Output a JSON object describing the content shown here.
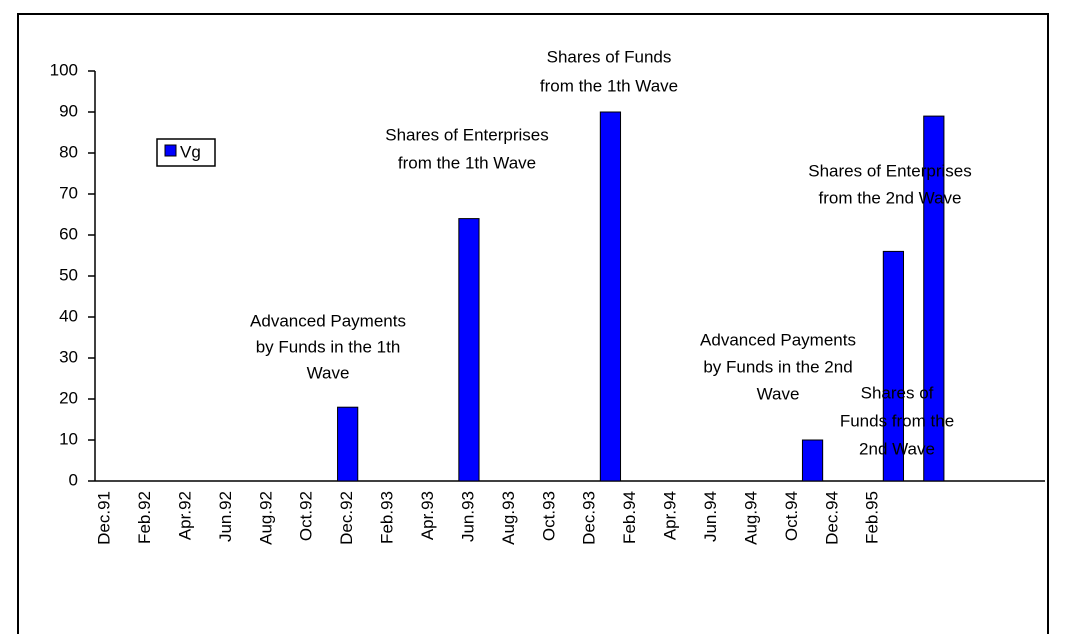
{
  "chart_data": {
    "type": "bar",
    "categories": [
      "Dec.91",
      null,
      "Feb.92",
      null,
      "Apr.92",
      null,
      "Jun.92",
      null,
      "Aug.92",
      null,
      "Oct.92",
      null,
      "Dec.92",
      null,
      "Feb.93",
      null,
      "Apr.93",
      null,
      "Jun.93",
      null,
      "Aug.93",
      null,
      "Oct.93",
      null,
      "Dec.93",
      null,
      "Feb.94",
      null,
      "Apr.94",
      null,
      "Jun.94",
      null,
      "Aug.94",
      null,
      "Oct.94",
      null,
      "Dec.94",
      null,
      "Feb.95",
      null,
      null,
      null,
      null,
      null,
      null,
      null,
      null
    ],
    "series": [
      {
        "name": "Vg",
        "color": "#0000ff",
        "values": [
          null,
          null,
          null,
          null,
          null,
          null,
          null,
          null,
          null,
          null,
          null,
          null,
          18,
          null,
          null,
          null,
          null,
          null,
          64,
          null,
          null,
          null,
          null,
          null,
          null,
          90,
          null,
          null,
          null,
          null,
          null,
          null,
          null,
          null,
          null,
          10,
          null,
          null,
          null,
          56,
          null,
          89,
          null,
          null,
          null,
          null,
          null
        ]
      }
    ],
    "ylim": [
      0,
      100
    ],
    "yticks": [
      0,
      10,
      20,
      30,
      40,
      50,
      60,
      70,
      80,
      90,
      100
    ],
    "annotations": [
      [
        "Advanced Payments",
        "by Funds in the 1th",
        "Wave"
      ],
      [
        "Shares of Enterprises",
        "from the 1th Wave"
      ],
      [
        "Shares of Funds",
        "from the 1th Wave"
      ],
      [
        "Advanced Payments",
        "by Funds in the 2nd",
        "Wave"
      ],
      [
        "Shares of Enterprises",
        "from the 2nd Wave"
      ],
      [
        "Shares of",
        "Funds from the",
        "2nd Wave"
      ]
    ]
  }
}
